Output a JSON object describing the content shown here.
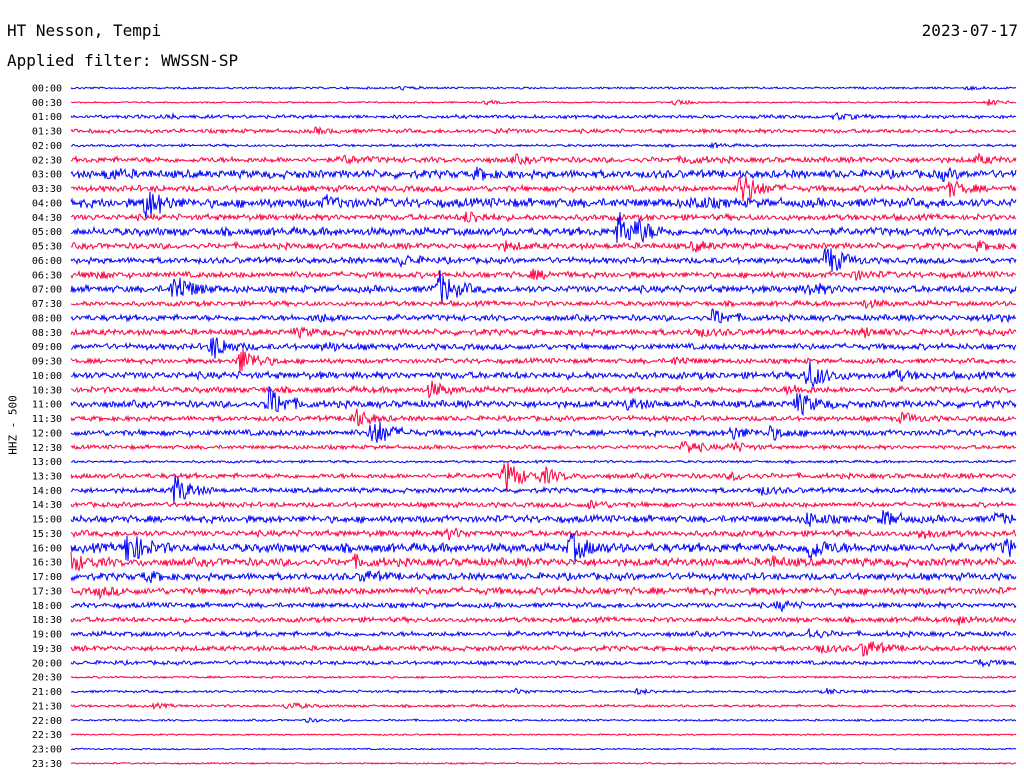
{
  "header": {
    "station": "HT Nesson, Tempi",
    "date": "2023-07-17",
    "filter_line": "Applied filter: WWSSN-SP"
  },
  "chart_data": {
    "type": "line",
    "title": "HT Nesson, Tempi",
    "ylabel": "HHZ - 500",
    "trace_colors": [
      "#0000ff",
      "#ff0040"
    ],
    "grid": false,
    "rows": [
      {
        "label": "00:00",
        "amplitude": 0.2,
        "events": [
          [
            0.35,
            0.25
          ],
          [
            0.95,
            0.25
          ]
        ]
      },
      {
        "label": "00:30",
        "amplitude": 0.15,
        "events": [
          [
            0.44,
            0.3
          ],
          [
            0.64,
            0.5
          ],
          [
            0.97,
            0.5
          ]
        ]
      },
      {
        "label": "01:00",
        "amplitude": 0.35,
        "events": [
          [
            0.1,
            0.3
          ],
          [
            0.81,
            0.5
          ]
        ]
      },
      {
        "label": "01:30",
        "amplitude": 0.4,
        "events": [
          [
            0.26,
            0.4
          ],
          [
            0.45,
            0.3
          ]
        ]
      },
      {
        "label": "02:00",
        "amplitude": 0.25,
        "events": [
          [
            0.68,
            0.3
          ]
        ]
      },
      {
        "label": "02:30",
        "amplitude": 0.55,
        "events": [
          [
            0.29,
            0.6
          ],
          [
            0.47,
            0.5
          ],
          [
            0.65,
            0.6
          ],
          [
            0.96,
            0.6
          ]
        ]
      },
      {
        "label": "03:00",
        "amplitude": 0.8,
        "events": [
          [
            0.04,
            0.8
          ],
          [
            0.43,
            0.7
          ],
          [
            0.92,
            0.6
          ]
        ]
      },
      {
        "label": "03:30",
        "amplitude": 0.6,
        "events": [
          [
            0.71,
            2.8
          ],
          [
            0.93,
            1.2
          ]
        ]
      },
      {
        "label": "04:00",
        "amplitude": 0.9,
        "events": [
          [
            0.08,
            2.6
          ],
          [
            0.27,
            0.8
          ],
          [
            0.66,
            0.8
          ]
        ]
      },
      {
        "label": "04:30",
        "amplitude": 0.6,
        "events": [
          [
            0.42,
            1.0
          ]
        ]
      },
      {
        "label": "05:00",
        "amplitude": 0.8,
        "events": [
          [
            0.58,
            2.8
          ],
          [
            0.6,
            1.2
          ]
        ]
      },
      {
        "label": "05:30",
        "amplitude": 0.6,
        "events": [
          [
            0.46,
            0.6
          ],
          [
            0.66,
            0.7
          ],
          [
            0.96,
            0.6
          ]
        ]
      },
      {
        "label": "06:00",
        "amplitude": 0.6,
        "events": [
          [
            0.35,
            0.8
          ],
          [
            0.8,
            2.6
          ]
        ]
      },
      {
        "label": "06:30",
        "amplitude": 0.6,
        "events": [
          [
            0.02,
            0.6
          ],
          [
            0.49,
            0.6
          ],
          [
            0.83,
            0.6
          ]
        ]
      },
      {
        "label": "07:00",
        "amplitude": 0.7,
        "events": [
          [
            0.11,
            2.6
          ],
          [
            0.39,
            2.8
          ],
          [
            0.78,
            0.9
          ]
        ]
      },
      {
        "label": "07:30",
        "amplitude": 0.5,
        "events": [
          [
            0.84,
            0.6
          ]
        ]
      },
      {
        "label": "08:00",
        "amplitude": 0.6,
        "events": [
          [
            0.26,
            0.6
          ],
          [
            0.68,
            1.3
          ],
          [
            0.97,
            0.6
          ]
        ]
      },
      {
        "label": "08:30",
        "amplitude": 0.6,
        "events": [
          [
            0.24,
            0.6
          ],
          [
            0.66,
            0.7
          ],
          [
            0.84,
            0.6
          ]
        ]
      },
      {
        "label": "09:00",
        "amplitude": 0.6,
        "events": [
          [
            0.15,
            2.0
          ],
          [
            0.27,
            0.6
          ]
        ]
      },
      {
        "label": "09:30",
        "amplitude": 0.5,
        "events": [
          [
            0.18,
            2.4
          ],
          [
            0.64,
            0.6
          ]
        ]
      },
      {
        "label": "10:00",
        "amplitude": 0.7,
        "events": [
          [
            0.78,
            2.4
          ],
          [
            0.87,
            0.8
          ]
        ]
      },
      {
        "label": "10:30",
        "amplitude": 0.6,
        "events": [
          [
            0.38,
            1.2
          ],
          [
            0.76,
            0.6
          ]
        ]
      },
      {
        "label": "11:00",
        "amplitude": 0.7,
        "events": [
          [
            0.21,
            2.6
          ],
          [
            0.59,
            0.8
          ],
          [
            0.77,
            1.8
          ]
        ]
      },
      {
        "label": "11:30",
        "amplitude": 0.5,
        "events": [
          [
            0.3,
            1.6
          ],
          [
            0.88,
            0.8
          ]
        ]
      },
      {
        "label": "12:00",
        "amplitude": 0.6,
        "events": [
          [
            0.32,
            2.6
          ],
          [
            0.7,
            1.0
          ],
          [
            0.74,
            0.9
          ]
        ]
      },
      {
        "label": "12:30",
        "amplitude": 0.4,
        "events": [
          [
            0.65,
            1.2
          ],
          [
            0.7,
            0.8
          ]
        ]
      },
      {
        "label": "13:00",
        "amplitude": 0.25,
        "events": []
      },
      {
        "label": "13:30",
        "amplitude": 0.5,
        "events": [
          [
            0.46,
            2.8
          ],
          [
            0.5,
            1.2
          ],
          [
            0.7,
            0.6
          ]
        ]
      },
      {
        "label": "14:00",
        "amplitude": 0.5,
        "events": [
          [
            0.11,
            2.6
          ],
          [
            0.73,
            0.6
          ]
        ]
      },
      {
        "label": "14:30",
        "amplitude": 0.5,
        "events": [
          [
            0.55,
            0.6
          ]
        ]
      },
      {
        "label": "15:00",
        "amplitude": 0.7,
        "events": [
          [
            0.78,
            1.0
          ],
          [
            0.86,
            1.2
          ],
          [
            0.98,
            0.8
          ]
        ]
      },
      {
        "label": "15:30",
        "amplitude": 0.6,
        "events": [
          [
            0.4,
            0.7
          ],
          [
            0.9,
            0.7
          ]
        ]
      },
      {
        "label": "16:00",
        "amplitude": 0.9,
        "events": [
          [
            0.06,
            2.8
          ],
          [
            0.53,
            2.2
          ],
          [
            0.78,
            2.0
          ],
          [
            0.99,
            1.2
          ]
        ]
      },
      {
        "label": "16:30",
        "amplitude": 0.8,
        "events": [
          [
            0.0,
            1.4
          ],
          [
            0.3,
            0.7
          ],
          [
            0.74,
            0.7
          ]
        ]
      },
      {
        "label": "17:00",
        "amplitude": 0.7,
        "events": [
          [
            0.08,
            0.7
          ],
          [
            0.31,
            0.8
          ]
        ]
      },
      {
        "label": "17:30",
        "amplitude": 0.7,
        "events": [
          [
            0.03,
            0.6
          ]
        ]
      },
      {
        "label": "18:00",
        "amplitude": 0.5,
        "events": [
          [
            0.75,
            0.7
          ]
        ]
      },
      {
        "label": "18:30",
        "amplitude": 0.5,
        "events": [
          [
            0.94,
            0.7
          ]
        ]
      },
      {
        "label": "19:00",
        "amplitude": 0.5,
        "events": [
          [
            0.78,
            0.8
          ]
        ]
      },
      {
        "label": "19:30",
        "amplitude": 0.5,
        "events": [
          [
            0.79,
            0.7
          ],
          [
            0.84,
            1.6
          ]
        ]
      },
      {
        "label": "20:00",
        "amplitude": 0.4,
        "events": [
          [
            0.96,
            0.5
          ]
        ]
      },
      {
        "label": "20:30",
        "amplitude": 0.2,
        "events": []
      },
      {
        "label": "21:00",
        "amplitude": 0.25,
        "events": [
          [
            0.47,
            0.4
          ],
          [
            0.6,
            0.4
          ],
          [
            0.8,
            0.4
          ]
        ]
      },
      {
        "label": "21:30",
        "amplitude": 0.25,
        "events": [
          [
            0.23,
            0.6
          ],
          [
            0.09,
            0.3
          ]
        ]
      },
      {
        "label": "22:00",
        "amplitude": 0.2,
        "events": [
          [
            0.25,
            0.3
          ]
        ]
      },
      {
        "label": "22:30",
        "amplitude": 0.15,
        "events": []
      },
      {
        "label": "23:00",
        "amplitude": 0.15,
        "events": []
      },
      {
        "label": "23:30",
        "amplitude": 0.15,
        "events": []
      }
    ]
  }
}
